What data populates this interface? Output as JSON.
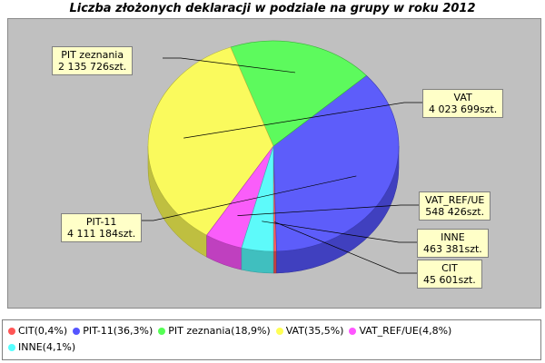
{
  "chart_data": {
    "type": "pie",
    "title": "Liczba złożonych deklaracji w podziale na grupy w roku 2012",
    "slices": [
      {
        "name": "CIT",
        "value": 45601,
        "value_label": "45 601szt.",
        "percent_label": "0,4%",
        "legend": "CIT(0,4%)",
        "color": "#ff5555"
      },
      {
        "name": "PIT-11",
        "value": 4111184,
        "value_label": "4 111 184szt.",
        "percent_label": "36,3%",
        "legend": "PIT-11(36,3%)",
        "color": "#5555ff"
      },
      {
        "name": "PIT zeznania",
        "value": 2135726,
        "value_label": "2 135 726szt.",
        "percent_label": "18,9%",
        "legend": "PIT zeznania(18,9%)",
        "color": "#55ff55"
      },
      {
        "name": "VAT",
        "value": 4023699,
        "value_label": "4 023 699szt.",
        "percent_label": "35,5%",
        "legend": "VAT(35,5%)",
        "color": "#ffff55"
      },
      {
        "name": "VAT_REF/UE",
        "value": 548426,
        "value_label": "548 426szt.",
        "percent_label": "4,8%",
        "legend": "VAT_REF/UE(4,8%)",
        "color": "#ff55ff"
      },
      {
        "name": "INNE",
        "value": 463381,
        "value_label": "463 381szt.",
        "percent_label": "4,1%",
        "legend": "INNE(4,1%)",
        "color": "#55ffff"
      }
    ],
    "style": "3d",
    "legend_position": "bottom"
  }
}
